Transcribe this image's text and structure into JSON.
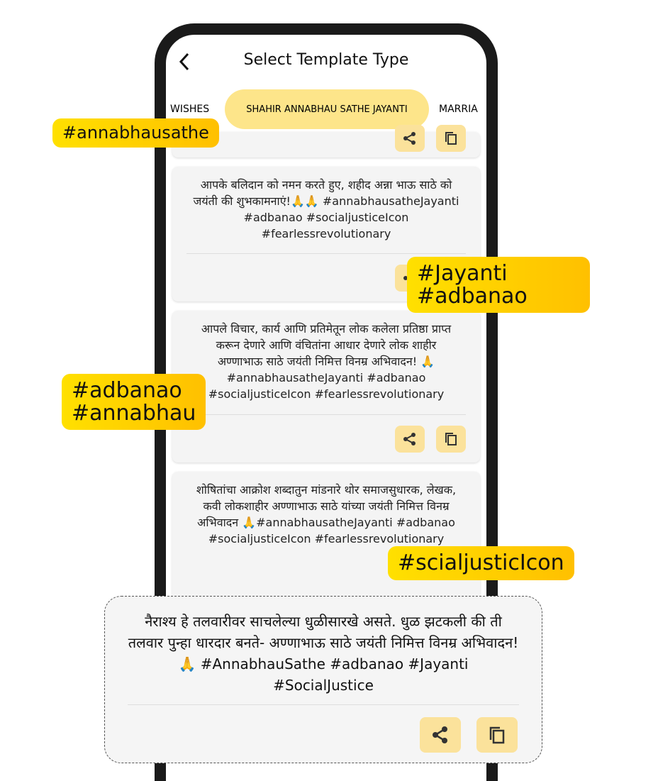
{
  "header": {
    "title": "Select Template Type"
  },
  "tabs": [
    "WISHES",
    "SHAHIR ANNABHAU SATHE JAYANTI",
    "MARRIA"
  ],
  "cards": [
    "आपके बलिदान को नमन करते हुए, शहीद अन्ना भाऊ साठे को जयंती की शुभकामनाएं!🙏🙏 #annabhausatheJayanti #adbanao #socialjusticeIcon #fearlessrevolutionary",
    "आपले विचार, कार्य आणि प्रतिमेतून लोक कलेला प्रतिष्ठा प्राप्त करून देणारे आणि वंचितांना आधार देणारे लोक शाहीर अण्णाभाऊ साठे जयंती निमित्त विनम्र अभिवादन! 🙏#annabhausatheJayanti #adbanao #socialjusticeIcon #fearlessrevolutionary",
    "शोषितांचा आक्रोश शब्दातुन मांडनारे थोर समाजसुधारक, लेखक, कवी लोकशाहीर अण्णाभाऊ साठे यांच्या जयंती निमित्त विनम्र अभिवादन 🙏#annabhausatheJayanti #adbanao #socialjusticeIcon #fearlessrevolutionary"
  ],
  "featured": "नैराश्य हे तलवारीवर साचलेल्या धुळीसारखे असते. धुळ झटकली की ती तलवार पुन्हा धारदार बनते- अण्णाभाऊ साठे जयंती निमित्त विनम्र अभिवादन! 🙏 #AnnabhauSathe #adbanao #Jayanti #SocialJustice",
  "badges": [
    [
      "#annabhausathe"
    ],
    [
      "#Jayanti",
      "#adbanao"
    ],
    [
      "#adbanao",
      "#annabhau"
    ],
    [
      "#scialjusticIcon"
    ]
  ]
}
